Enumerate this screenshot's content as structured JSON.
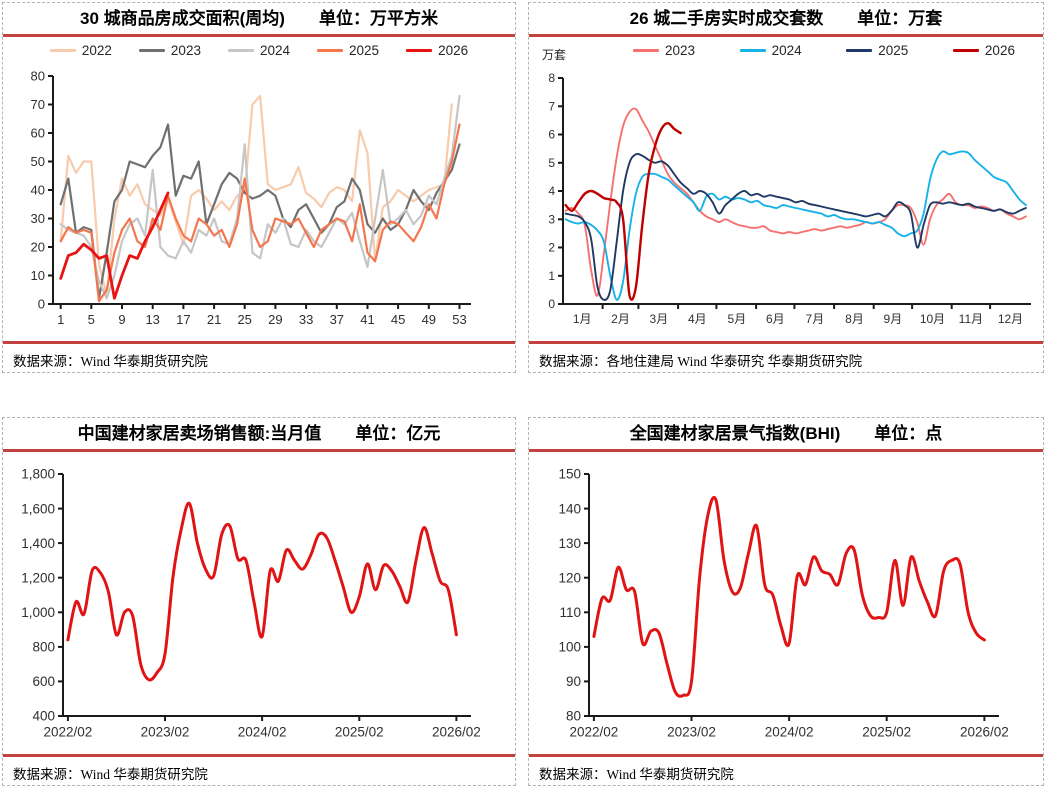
{
  "colors": {
    "rule_red": "#c3423f",
    "panel_border": "#b3b3b3",
    "axis": "#1a1a1a",
    "tick_text": "#303030"
  },
  "chart_data": [
    {
      "type": "line",
      "title": "30 城商品房成交面积(周均)　　单位：万平方米",
      "source": "数据来源：Wind  华泰期货研究院",
      "ylabel": "万平方米",
      "xlim": [
        0,
        54.5
      ],
      "ylim": [
        0,
        80
      ],
      "yticks": {
        "vals": [
          0,
          10,
          20,
          30,
          40,
          50,
          60,
          70,
          80
        ],
        "labels": [
          "0",
          "10",
          "20",
          "30",
          "40",
          "50",
          "60",
          "70",
          "80"
        ]
      },
      "xticks": {
        "vals": [
          1,
          5,
          9,
          13,
          17,
          21,
          25,
          29,
          33,
          37,
          41,
          45,
          49,
          53
        ],
        "labels": [
          "1",
          "5",
          "9",
          "13",
          "17",
          "21",
          "25",
          "29",
          "33",
          "37",
          "41",
          "45",
          "49",
          "53"
        ]
      },
      "legend_position": "top",
      "series": [
        {
          "name": "2022",
          "color": "#f8cbad",
          "width": 2.2,
          "x0": 1,
          "dx": 1,
          "smooth": false,
          "values": [
            22,
            52,
            46,
            50,
            50,
            14,
            3,
            30,
            44,
            38,
            42,
            35,
            33,
            31,
            37,
            29,
            21,
            38,
            40,
            37,
            33,
            36,
            33,
            38,
            39,
            70,
            73,
            42,
            40,
            41,
            42,
            48,
            39,
            37,
            34,
            39,
            41,
            40,
            36,
            61,
            53,
            15,
            34,
            36,
            40,
            38,
            36,
            38,
            40,
            41,
            42,
            70
          ]
        },
        {
          "name": "2023",
          "color": "#707070",
          "width": 2.2,
          "x0": 1,
          "dx": 1,
          "smooth": false,
          "values": [
            35,
            44,
            25,
            27,
            26,
            2,
            18,
            36,
            40,
            50,
            49,
            48,
            52,
            55,
            63,
            38,
            45,
            44,
            50,
            28,
            35,
            42,
            46,
            44,
            39,
            37,
            38,
            40,
            38,
            30,
            27,
            33,
            35,
            30,
            25,
            28,
            34,
            36,
            44,
            40,
            28,
            25,
            30,
            26,
            28,
            33,
            40,
            36,
            33,
            39,
            43,
            47,
            56
          ]
        },
        {
          "name": "2024",
          "color": "#c6c6c6",
          "width": 2.2,
          "x0": 1,
          "dx": 1,
          "smooth": false,
          "values": [
            28,
            26,
            25,
            24,
            20,
            8,
            2,
            10,
            22,
            28,
            30,
            24,
            47,
            20,
            17,
            16,
            22,
            18,
            26,
            24,
            30,
            22,
            21,
            30,
            56,
            18,
            16,
            28,
            25,
            30,
            21,
            20,
            26,
            22,
            20,
            25,
            30,
            28,
            32,
            22,
            13,
            30,
            47,
            28,
            30,
            33,
            28,
            31,
            38,
            35,
            44,
            52,
            73
          ]
        },
        {
          "name": "2025",
          "color": "#f4764e",
          "width": 2.2,
          "x0": 1,
          "dx": 1,
          "smooth": false,
          "values": [
            22,
            27,
            25,
            26,
            25,
            1,
            5,
            18,
            26,
            30,
            22,
            20,
            30,
            26,
            38,
            30,
            24,
            22,
            30,
            28,
            24,
            26,
            20,
            28,
            44,
            26,
            20,
            22,
            30,
            29,
            28,
            30,
            25,
            20,
            26,
            28,
            30,
            29,
            22,
            35,
            18,
            15,
            26,
            29,
            28,
            25,
            22,
            27,
            35,
            30,
            42,
            50,
            63
          ]
        },
        {
          "name": "2026",
          "color": "#e81414",
          "width": 2.8,
          "x0": 1,
          "dx": 1,
          "smooth": false,
          "values": [
            9,
            17,
            18,
            21,
            19,
            16,
            17,
            2,
            10,
            17,
            16,
            22,
            27,
            33,
            39
          ]
        }
      ]
    },
    {
      "type": "line",
      "title": "26 城二手房实时成交套数　　单位：万套",
      "source": "数据来源：各地住建局  Wind  华泰研究  华泰期货研究院",
      "y_axis_unit": "万套",
      "xlim": [
        0,
        366
      ],
      "ylim": [
        0,
        8
      ],
      "yticks": {
        "vals": [
          0,
          1,
          2,
          3,
          4,
          5,
          6,
          7,
          8
        ],
        "labels": [
          "0",
          "1",
          "2",
          "3",
          "4",
          "5",
          "6",
          "7",
          "8"
        ]
      },
      "xticks": {
        "vals": [
          31,
          59,
          90,
          120,
          151,
          181,
          212,
          243,
          273,
          304,
          334
        ],
        "label_vals": [
          15,
          45,
          75,
          105,
          136,
          166,
          197,
          228,
          258,
          289,
          319,
          350
        ],
        "labels": [
          "1月",
          "2月",
          "3月",
          "4月",
          "5月",
          "6月",
          "7月",
          "8月",
          "9月",
          "10月",
          "11月",
          "12月"
        ]
      },
      "legend_position": "top",
      "series": [
        {
          "name": "2023",
          "color": "#f4716f",
          "width": 1.9,
          "x0": 2,
          "dx": 5,
          "smooth": true,
          "values": [
            3.3,
            3.4,
            3.2,
            2.8,
            1.2,
            0.3,
            1.8,
            3.6,
            5.2,
            6.3,
            6.8,
            6.9,
            6.5,
            6.1,
            5.6,
            5.1,
            4.6,
            4.3,
            4.1,
            3.9,
            3.6,
            3.3,
            3.1,
            3.0,
            2.9,
            3.0,
            2.9,
            2.8,
            2.75,
            2.7,
            2.7,
            2.75,
            2.6,
            2.55,
            2.5,
            2.55,
            2.5,
            2.55,
            2.6,
            2.65,
            2.6,
            2.65,
            2.7,
            2.75,
            2.7,
            2.75,
            2.8,
            2.9,
            2.85,
            2.9,
            3.0,
            3.3,
            3.5,
            3.5,
            3.4,
            2.9,
            2.1,
            3.0,
            3.5,
            3.7,
            3.9,
            3.6,
            3.5,
            3.5,
            3.4,
            3.45,
            3.4,
            3.3,
            3.35,
            3.2,
            3.1,
            3.0,
            3.1
          ]
        },
        {
          "name": "2024",
          "color": "#18b2e8",
          "width": 1.9,
          "x0": 2,
          "dx": 5,
          "smooth": true,
          "values": [
            3.0,
            2.9,
            2.85,
            2.9,
            2.8,
            2.6,
            2.2,
            1.0,
            0.15,
            0.8,
            2.6,
            3.9,
            4.5,
            4.6,
            4.6,
            4.5,
            4.4,
            4.2,
            4.0,
            3.8,
            3.6,
            3.3,
            3.8,
            3.9,
            3.7,
            3.8,
            3.7,
            3.75,
            3.7,
            3.6,
            3.65,
            3.5,
            3.45,
            3.4,
            3.5,
            3.45,
            3.4,
            3.35,
            3.3,
            3.25,
            3.2,
            3.1,
            3.15,
            3.05,
            3.0,
            3.0,
            2.95,
            2.9,
            2.85,
            2.9,
            2.8,
            2.7,
            2.5,
            2.4,
            2.5,
            2.6,
            3.2,
            4.4,
            5.1,
            5.4,
            5.3,
            5.35,
            5.4,
            5.35,
            5.1,
            4.9,
            4.7,
            4.5,
            4.4,
            4.3,
            4.0,
            3.7,
            3.5
          ]
        },
        {
          "name": "2025",
          "color": "#1f3864",
          "width": 1.9,
          "x0": 2,
          "dx": 5,
          "smooth": true,
          "values": [
            3.2,
            3.15,
            3.1,
            2.9,
            2.3,
            0.6,
            0.15,
            0.5,
            2.2,
            4.0,
            5.0,
            5.3,
            5.25,
            5.1,
            5.0,
            5.05,
            4.9,
            4.6,
            4.3,
            4.1,
            3.9,
            4.0,
            3.9,
            3.6,
            3.2,
            3.5,
            3.7,
            3.9,
            4.0,
            3.85,
            3.9,
            3.8,
            3.85,
            3.8,
            3.75,
            3.7,
            3.6,
            3.65,
            3.55,
            3.5,
            3.45,
            3.4,
            3.35,
            3.3,
            3.25,
            3.2,
            3.15,
            3.1,
            3.15,
            3.2,
            3.1,
            3.3,
            3.6,
            3.5,
            3.2,
            2.0,
            2.8,
            3.5,
            3.6,
            3.55,
            3.6,
            3.55,
            3.5,
            3.55,
            3.45,
            3.4,
            3.35,
            3.3,
            3.35,
            3.25,
            3.2,
            3.3,
            3.4
          ]
        },
        {
          "name": "2026",
          "color": "#c00000",
          "width": 2.4,
          "x0": 2,
          "dx": 5,
          "smooth": true,
          "values": [
            3.5,
            3.3,
            3.6,
            3.9,
            4.0,
            3.9,
            3.75,
            3.7,
            3.6,
            3.0,
            0.3,
            0.6,
            2.8,
            4.6,
            5.6,
            6.2,
            6.4,
            6.2,
            6.05
          ]
        }
      ]
    },
    {
      "type": "line",
      "title": "中国建材家居卖场销售额:当月值　　单位：亿元",
      "source": "数据来源：Wind  华泰期货研究院",
      "ylabel": "亿元",
      "xlim": [
        -0.6,
        49.8
      ],
      "ylim": [
        400,
        1800
      ],
      "yticks": {
        "vals": [
          400,
          600,
          800,
          1000,
          1200,
          1400,
          1600,
          1800
        ],
        "labels": [
          "400",
          "600",
          "800",
          "1,000",
          "1,200",
          "1,400",
          "1,600",
          "1,800"
        ]
      },
      "xticks": {
        "vals": [
          0,
          12,
          24,
          36,
          48
        ],
        "labels": [
          "2022/02",
          "2023/02",
          "2024/02",
          "2025/02",
          "2026/02"
        ]
      },
      "series": [
        {
          "name": "销售额当月值",
          "color": "#e01414",
          "width": 3,
          "x0": 0,
          "dx": 1,
          "smooth": true,
          "values": [
            840,
            1060,
            990,
            1240,
            1230,
            1120,
            870,
            1000,
            980,
            700,
            610,
            650,
            760,
            1210,
            1480,
            1630,
            1400,
            1250,
            1210,
            1450,
            1500,
            1310,
            1300,
            1060,
            860,
            1240,
            1180,
            1360,
            1300,
            1250,
            1330,
            1450,
            1430,
            1300,
            1150,
            1000,
            1090,
            1280,
            1130,
            1270,
            1240,
            1150,
            1060,
            1300,
            1490,
            1340,
            1180,
            1130,
            870
          ]
        }
      ]
    },
    {
      "type": "line",
      "title": "全国建材家居景气指数(BHI)　　单位：点",
      "source": "数据来源：Wind  华泰期货研究院",
      "ylabel": "点",
      "xlim": [
        -0.6,
        49.8
      ],
      "ylim": [
        80,
        150
      ],
      "yticks": {
        "vals": [
          80,
          90,
          100,
          110,
          120,
          130,
          140,
          150
        ],
        "labels": [
          "80",
          "90",
          "100",
          "110",
          "120",
          "130",
          "140",
          "150"
        ]
      },
      "xticks": {
        "vals": [
          0,
          12,
          24,
          36,
          48
        ],
        "labels": [
          "2022/02",
          "2023/02",
          "2024/02",
          "2025/02",
          "2026/02"
        ]
      },
      "series": [
        {
          "name": "BHI",
          "color": "#e01414",
          "width": 3,
          "x0": 0,
          "dx": 1,
          "smooth": true,
          "values": [
            103,
            114,
            113.5,
            123,
            116.5,
            116,
            101,
            104.5,
            104,
            95,
            87,
            86,
            90,
            120,
            138,
            142.5,
            125,
            116,
            117,
            127,
            135,
            118,
            115,
            106,
            101,
            120.5,
            118,
            126,
            122,
            121,
            118,
            127,
            128,
            115,
            109,
            108.5,
            110,
            125,
            112,
            126,
            119,
            113,
            109,
            122,
            125,
            124,
            110,
            104,
            102
          ]
        }
      ]
    }
  ]
}
